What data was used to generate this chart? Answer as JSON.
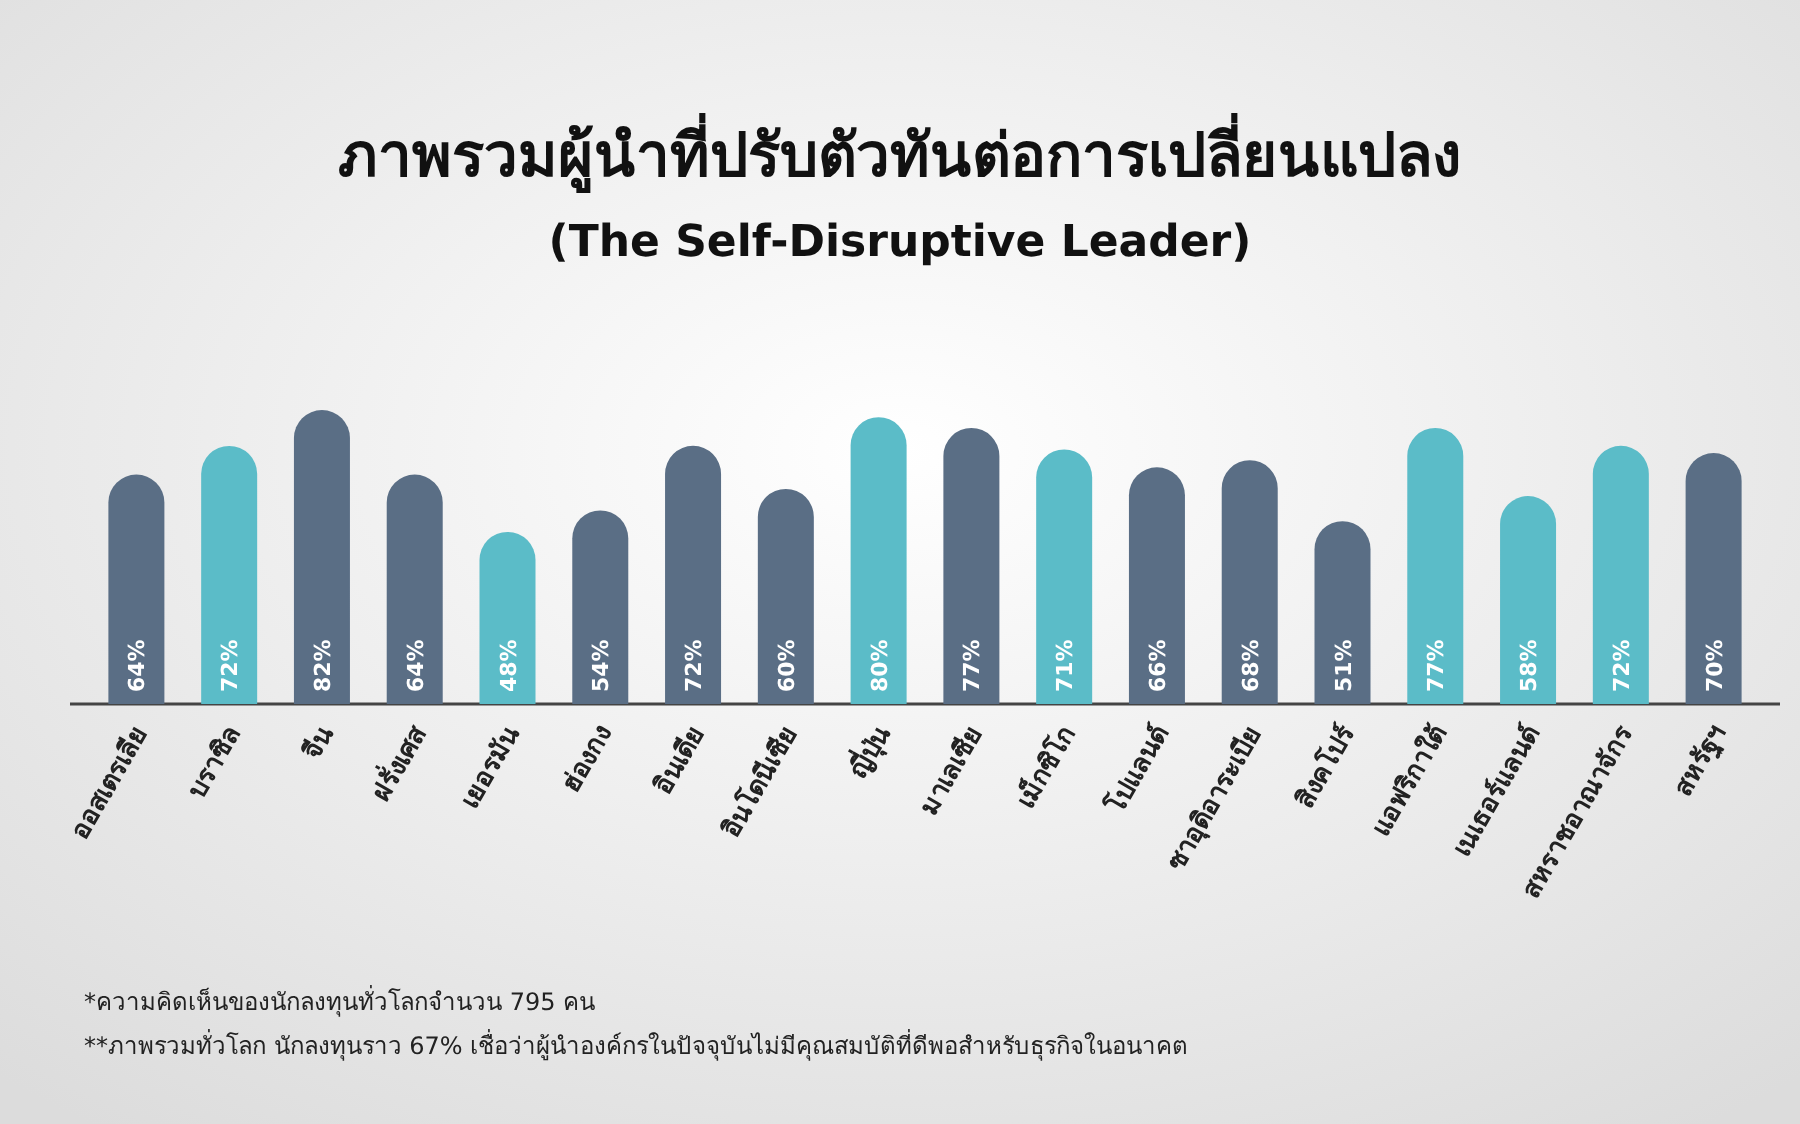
{
  "chart_data": {
    "type": "bar",
    "title": "ภาพรวมผู้นำที่ปรับตัวทันต่อการเปลี่ยนแปลง",
    "subtitle": "(The Self-Disruptive Leader)",
    "categories": [
      "ออสเตรเลีย",
      "บราซิล",
      "จีน",
      "ฝรั่งเศส",
      "เยอรมัน",
      "ฮ่องกง",
      "อินเดีย",
      "อินโดนีเซีย",
      "ญี่ปุ่น",
      "มาเลเซีย",
      "เม็กซิโก",
      "โปแลนด์",
      "ซาอุดิอาระเบีย",
      "สิงคโปร์",
      "แอฟริกาใต้",
      "เนเธอร์แลนด์",
      "สหราชอาณาจักร",
      "สหรัฐฯ"
    ],
    "values": [
      64,
      72,
      82,
      64,
      48,
      54,
      72,
      60,
      80,
      77,
      71,
      66,
      68,
      51,
      77,
      58,
      72,
      70
    ],
    "value_labels": [
      "64%",
      "72%",
      "82%",
      "64%",
      "48%",
      "54%",
      "72%",
      "60%",
      "80%",
      "77%",
      "71%",
      "66%",
      "68%",
      "51%",
      "77%",
      "58%",
      "72%",
      "70%"
    ],
    "colors": [
      "#5a6e85",
      "#5bbcc8",
      "#5a6e85",
      "#5a6e85",
      "#5bbcc8",
      "#5a6e85",
      "#5a6e85",
      "#5a6e85",
      "#5bbcc8",
      "#5a6e85",
      "#5bbcc8",
      "#5a6e85",
      "#5a6e85",
      "#5a6e85",
      "#5bbcc8",
      "#5bbcc8",
      "#5bbcc8",
      "#5a6e85"
    ],
    "annotations": [
      "*ความคิดเห็นของนักลงทุนทั่วโลกจำนวน 795 คน",
      "**ภาพรวมทั่วโลก นักลงทุนราว 67% เชื่อว่าผู้นำองค์กรในปัจจุบันไม่มีคุณสมบัติที่ดีพอสำหรับธุรกิจในอนาคต"
    ]
  }
}
